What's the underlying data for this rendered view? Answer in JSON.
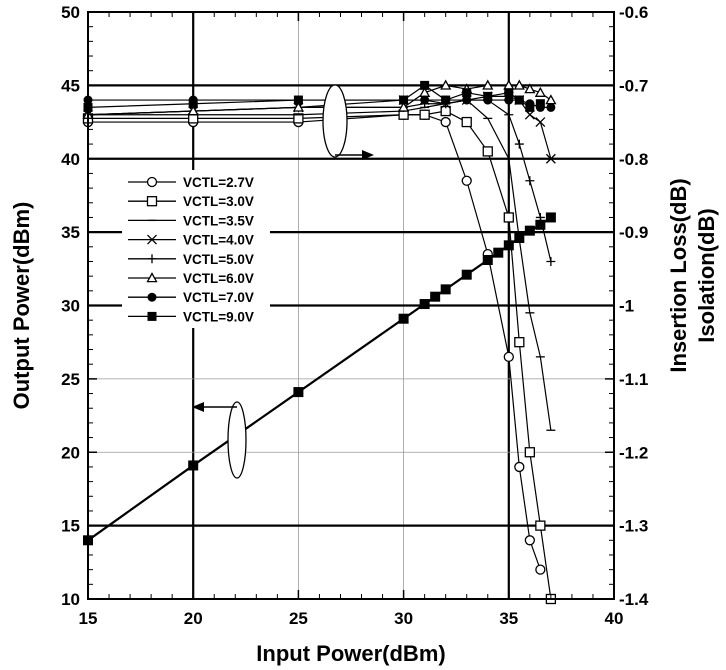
{
  "chart_data": {
    "type": "line",
    "xlabel": "Input Power(dBm)",
    "ylabel": "Output Power(dBm)",
    "y2label_line1": "Insertion Loss(dB)",
    "y2label_line2": "Isolation(dB)",
    "xlim": [
      15,
      40
    ],
    "ylim": [
      10,
      50
    ],
    "y2lim": [
      -1.4,
      -0.6
    ],
    "xticks": [
      "15",
      "20",
      "25",
      "30",
      "35",
      "40"
    ],
    "yticks": [
      "10",
      "15",
      "20",
      "25",
      "30",
      "35",
      "40",
      "45",
      "50"
    ],
    "y2ticks": [
      "-1.4",
      "-1.3",
      "-1.2",
      "-1.1",
      "-1",
      "-0.9",
      "-0.8",
      "-0.7",
      "-0.6"
    ],
    "grid": true,
    "legend_position": "left-middle",
    "output_power": {
      "x": [
        15,
        20,
        25,
        30,
        31,
        31.5,
        32,
        33,
        34,
        34.5,
        35,
        35.5,
        36,
        36.5,
        37
      ],
      "y": [
        14,
        19.1,
        24.1,
        29.1,
        30.1,
        30.6,
        31.1,
        32.1,
        33.1,
        33.6,
        34.1,
        34.6,
        35.1,
        35.5,
        36
      ]
    },
    "series": [
      {
        "name": "VCTL=2.7V",
        "marker": "circle-open",
        "axis": "y2",
        "x": [
          15,
          20,
          25,
          30,
          31,
          32,
          33,
          34,
          35,
          35.5,
          36,
          36.5
        ],
        "y": [
          -0.75,
          -0.75,
          -0.75,
          -0.74,
          -0.74,
          -0.75,
          -0.83,
          -0.93,
          -1.07,
          -1.22,
          -1.32,
          -1.36
        ]
      },
      {
        "name": "VCTL=3.0V",
        "marker": "square-open",
        "axis": "y2",
        "x": [
          15,
          20,
          25,
          30,
          31,
          32,
          33,
          34,
          35,
          35.5,
          36,
          36.5,
          37
        ],
        "y": [
          -0.745,
          -0.745,
          -0.745,
          -0.74,
          -0.74,
          -0.735,
          -0.75,
          -0.79,
          -0.88,
          -1.05,
          -1.2,
          -1.3,
          -1.4
        ]
      },
      {
        "name": "VCTL=3.5V",
        "marker": "dash",
        "axis": "y2",
        "x": [
          15,
          20,
          25,
          30,
          31,
          32,
          33,
          34,
          35,
          35.5,
          36,
          36.5,
          37
        ],
        "y": [
          -0.74,
          -0.74,
          -0.74,
          -0.735,
          -0.73,
          -0.725,
          -0.72,
          -0.745,
          -0.8,
          -0.91,
          -1.01,
          -1.07,
          -1.17
        ]
      },
      {
        "name": "VCTL=4.0V",
        "marker": "x",
        "axis": "y2",
        "x": [
          15,
          20,
          25,
          30,
          31,
          32,
          33,
          34,
          35,
          35.5,
          36,
          36.5,
          37
        ],
        "y": [
          -0.74,
          -0.735,
          -0.73,
          -0.72,
          -0.72,
          -0.725,
          -0.72,
          -0.715,
          -0.715,
          -0.72,
          -0.74,
          -0.75,
          -0.8
        ]
      },
      {
        "name": "VCTL=5.0V",
        "marker": "plus",
        "axis": "y2",
        "x": [
          15,
          20,
          25,
          30,
          31,
          32,
          33,
          34,
          35,
          35.5,
          36,
          36.5,
          37
        ],
        "y": [
          -0.74,
          -0.735,
          -0.73,
          -0.73,
          -0.725,
          -0.725,
          -0.72,
          -0.72,
          -0.74,
          -0.78,
          -0.83,
          -0.88,
          -0.94
        ]
      },
      {
        "name": "VCTL=6.0V",
        "marker": "triangle-open",
        "axis": "y2",
        "x": [
          15,
          20,
          25,
          30,
          31,
          32,
          33,
          34,
          35,
          35.5,
          36,
          36.5,
          37
        ],
        "y": [
          -0.74,
          -0.735,
          -0.73,
          -0.73,
          -0.71,
          -0.7,
          -0.705,
          -0.7,
          -0.7,
          -0.7,
          -0.705,
          -0.71,
          -0.72
        ]
      },
      {
        "name": "VCTL=7.0V",
        "marker": "circle-filled",
        "axis": "y2",
        "x": [
          15,
          20,
          25,
          30,
          31,
          32,
          33,
          34,
          35,
          35.5,
          36,
          36.5,
          37
        ],
        "y": [
          -0.72,
          -0.72,
          -0.72,
          -0.72,
          -0.72,
          -0.72,
          -0.72,
          -0.72,
          -0.72,
          -0.72,
          -0.725,
          -0.73,
          -0.73
        ]
      },
      {
        "name": "VCTL=9.0V",
        "marker": "square-filled",
        "axis": "y2",
        "x": [
          15,
          20,
          25,
          30,
          31,
          32,
          33,
          34,
          35,
          35.5,
          36,
          36.5
        ],
        "y": [
          -0.73,
          -0.725,
          -0.72,
          -0.72,
          -0.7,
          -0.72,
          -0.71,
          -0.715,
          -0.71,
          -0.72,
          -0.73,
          -0.725
        ]
      }
    ]
  }
}
